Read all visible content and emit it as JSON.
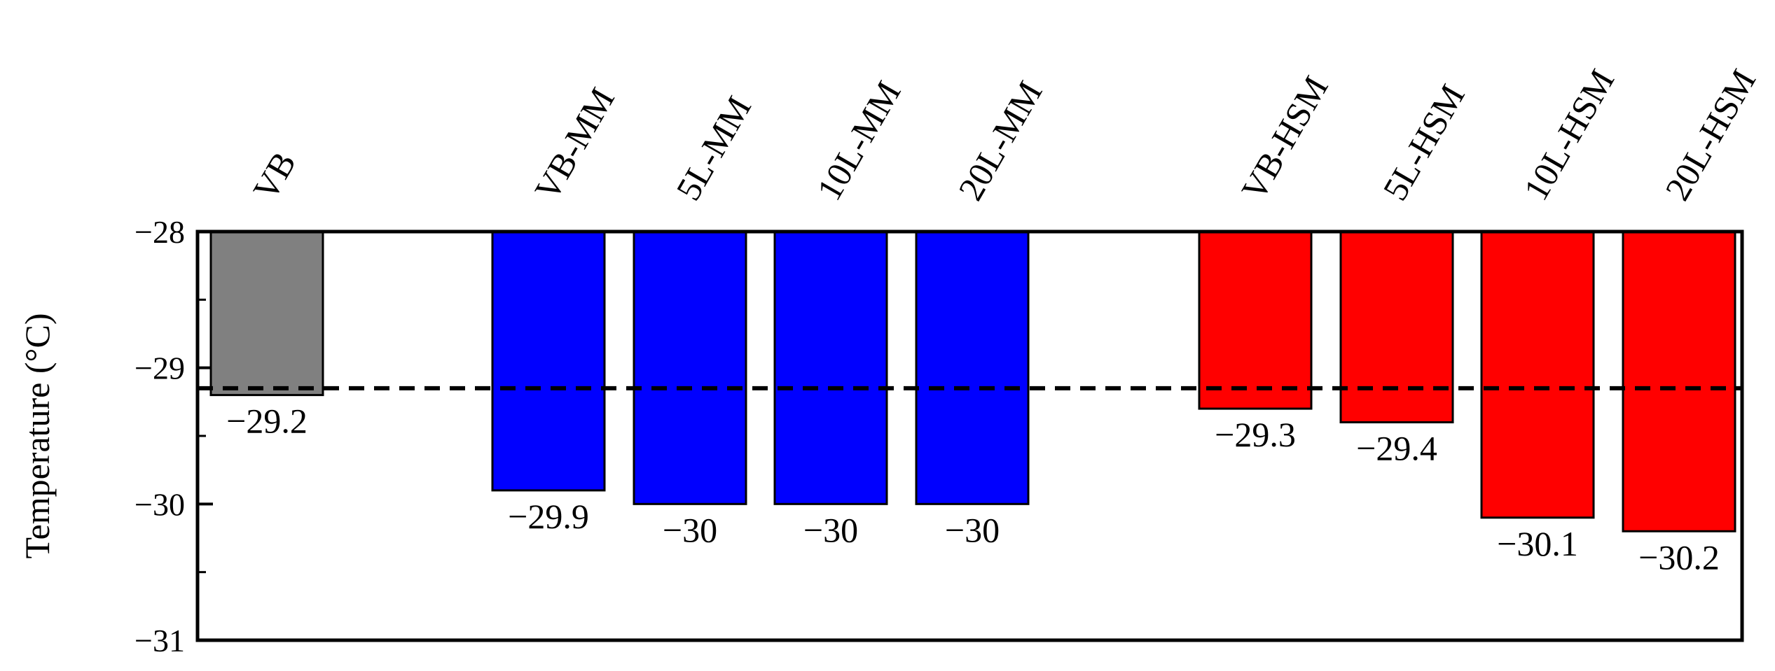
{
  "chart_data": {
    "type": "bar",
    "title": "",
    "xlabel": "",
    "ylabel": "Temperature (°C)",
    "ylim": [
      -31,
      -28
    ],
    "yticks": [
      -28,
      -29,
      -30,
      -31
    ],
    "ytick_labels": [
      "−28",
      "−29",
      "−30",
      "−31"
    ],
    "baseline": -28,
    "reference_line": {
      "value": -29.15,
      "style": "dashed",
      "color": "#000000"
    },
    "grid": false,
    "legend": "none",
    "categories": [
      "VB",
      "VB-MM",
      "5L-MM",
      "10L-MM",
      "20L-MM",
      "VB-HSM",
      "5L-HSM",
      "10L-HSM",
      "20L-HSM"
    ],
    "groups": [
      {
        "categories": [
          "VB"
        ],
        "color": "#808080"
      },
      {
        "categories": [
          "VB-MM",
          "5L-MM",
          "10L-MM",
          "20L-MM"
        ],
        "color": "#0000ff"
      },
      {
        "categories": [
          "VB-HSM",
          "5L-HSM",
          "10L-HSM",
          "20L-HSM"
        ],
        "color": "#ff0000"
      }
    ],
    "values": [
      -29.2,
      -29.9,
      -30,
      -30,
      -30,
      -29.3,
      -29.4,
      -30.1,
      -30.2
    ],
    "value_labels": [
      "−29.2",
      "−29.9",
      "−30",
      "−30",
      "−30",
      "−29.3",
      "−29.4",
      "−30.1",
      "−30.2"
    ]
  }
}
